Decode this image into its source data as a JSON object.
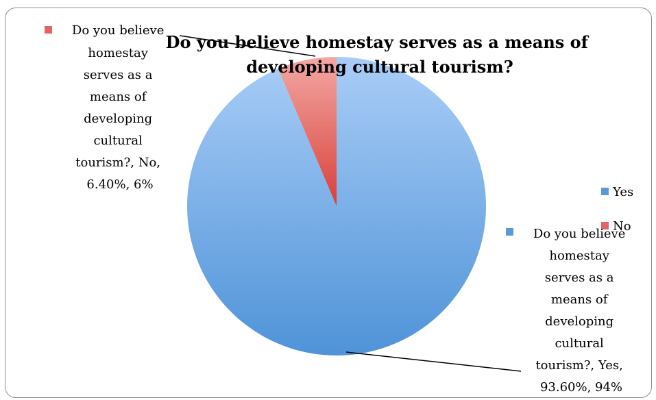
{
  "chart_data": {
    "type": "pie",
    "title": "Do you believe homestay serves as a means of developing cultural tourism?",
    "title_lines": [
      "Do you believe homestay serves as a means of",
      "developing cultural tourism?"
    ],
    "categories": [
      "Yes",
      "No"
    ],
    "values": [
      93.6,
      6.4
    ],
    "colors": [
      "#5b9bd5",
      "#e06666"
    ],
    "legend": {
      "position": "right",
      "entries": [
        "Yes",
        "No"
      ]
    },
    "data_labels": [
      {
        "category": "Yes",
        "lines": [
          "Do you believe",
          "homestay",
          "serves as a",
          "means of",
          "developing",
          "cultural",
          "tourism?, Yes,",
          "93.60%, 94%"
        ]
      },
      {
        "category": "No",
        "lines": [
          "Do you believe",
          "homestay",
          "serves as a",
          "means of",
          "developing",
          "cultural",
          "tourism?, No,",
          "6.40%, 6%"
        ]
      }
    ]
  }
}
